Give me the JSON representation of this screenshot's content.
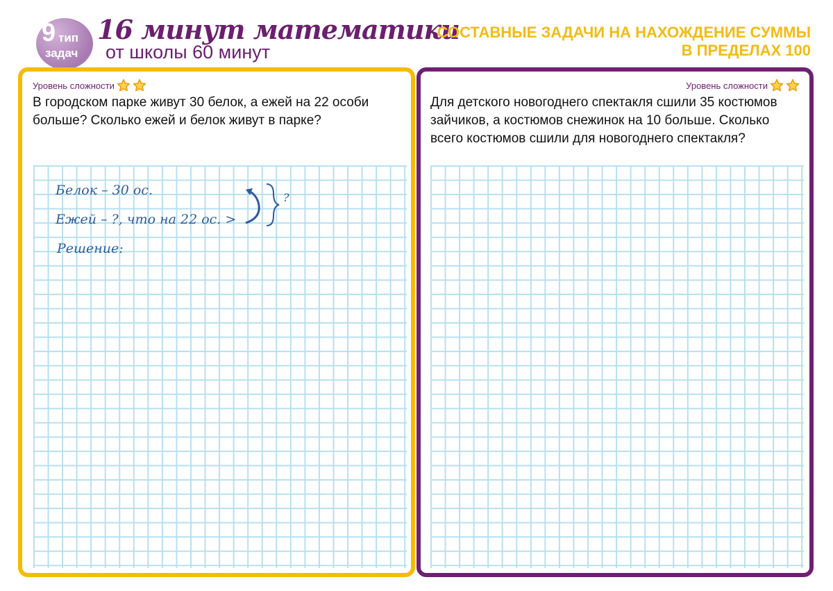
{
  "header": {
    "badge_number": "9",
    "badge_line1": "тип",
    "badge_line2": "задач",
    "title": "16 минут математики",
    "subtitle": "от школы 60 минут",
    "topic_line1": "СОСТАВНЫЕ ЗАДАЧИ НА НАХОЖДЕНИЕ СУММЫ",
    "topic_line2": "В ПРЕДЕЛАХ 100"
  },
  "colors": {
    "left_border": "#f6bb00",
    "right_border": "#6e2170",
    "brand": "#6b1f6e",
    "grid": "#b7dff0",
    "handwriting": "#2d5c9e"
  },
  "left_task": {
    "level_label": "Уровень сложности",
    "stars": 2,
    "text": "В городском парке живут 30 белок, а ежей на 22 особи больше? Сколько ежей и белок живут в парке?",
    "handwriting": {
      "line1": "Белок – 30 ос.",
      "line2": "Ежей – ?, что на 22 ос. >",
      "question": "?",
      "line3": "Решение:"
    }
  },
  "right_task": {
    "level_label": "Уровень сложности",
    "stars": 2,
    "text": "Для детского новогоднего спектакля сшили 35 костюмов зайчиков, а костюмов снежинок на 10 больше. Сколько всего костюмов сшили для новогоднего спектакля?"
  }
}
